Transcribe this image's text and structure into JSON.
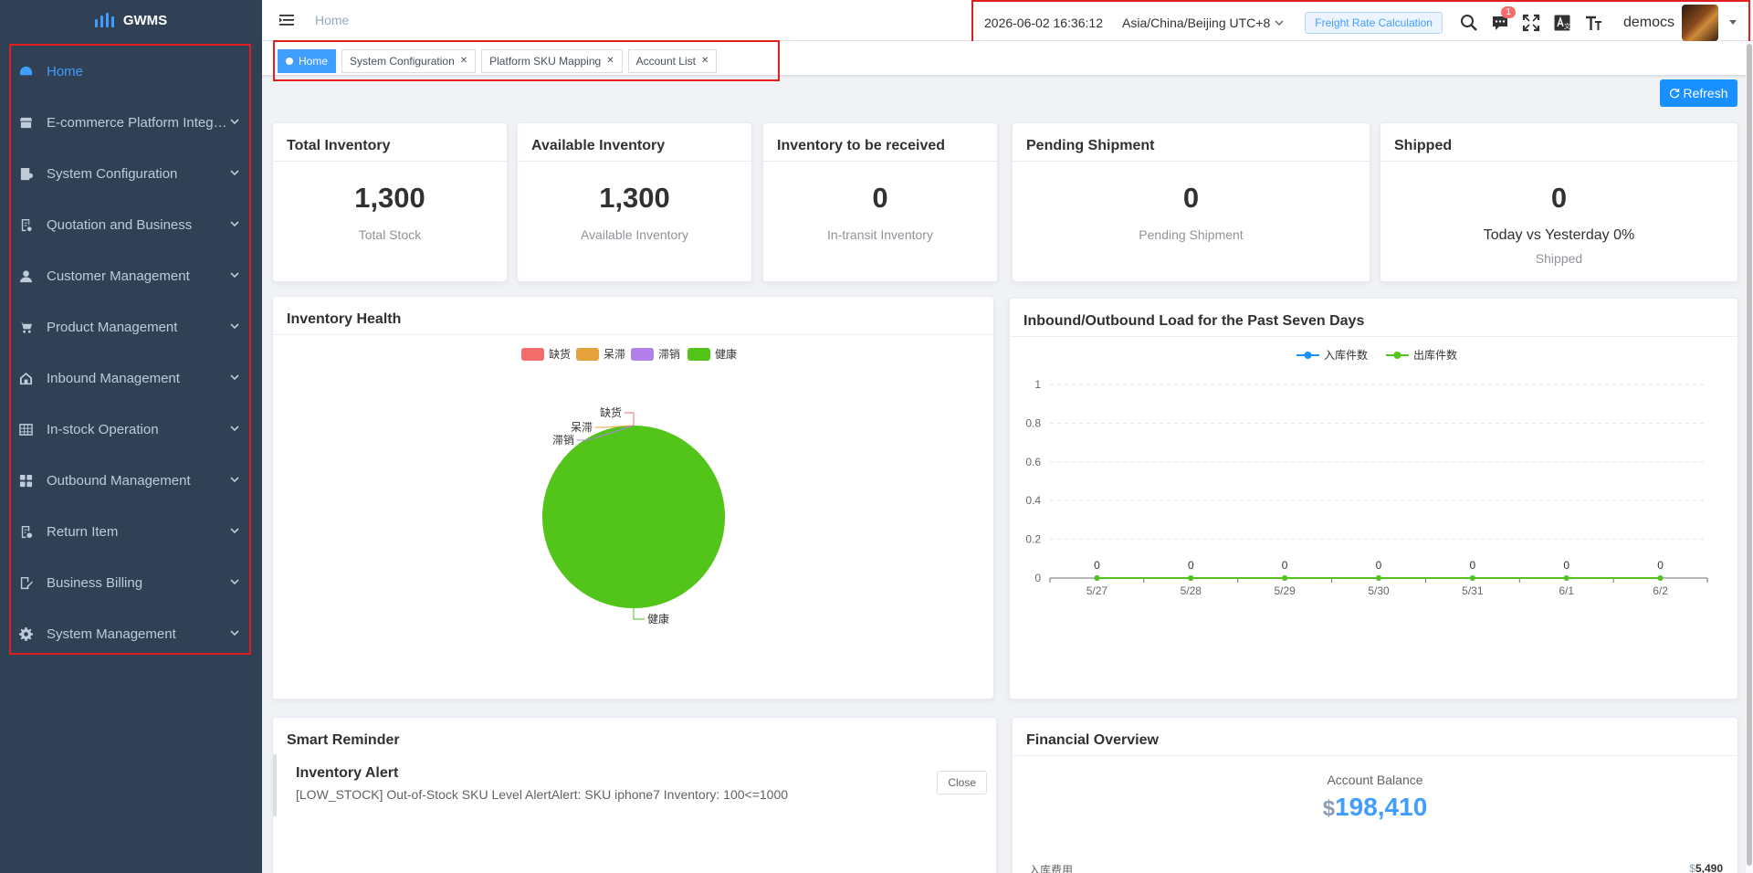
{
  "app": {
    "name": "GWMS"
  },
  "sidebar": {
    "items": [
      {
        "label": "Home",
        "icon": "dashboard-icon",
        "active": true
      },
      {
        "label": "E-commerce Platform Integr…",
        "icon": "shop-icon"
      },
      {
        "label": "System Configuration",
        "icon": "config-icon"
      },
      {
        "label": "Quotation and Business",
        "icon": "quotation-icon"
      },
      {
        "label": "Customer Management",
        "icon": "user-icon"
      },
      {
        "label": "Product Management",
        "icon": "cart-icon"
      },
      {
        "label": "Inbound Management",
        "icon": "home-icon"
      },
      {
        "label": "In-stock Operation",
        "icon": "table-icon"
      },
      {
        "label": "Outbound Management",
        "icon": "grid-icon"
      },
      {
        "label": "Return Item",
        "icon": "return-icon"
      },
      {
        "label": "Business Billing",
        "icon": "billing-icon"
      },
      {
        "label": "System Management",
        "icon": "gear-icon"
      }
    ]
  },
  "header": {
    "breadcrumb": "Home",
    "datetime": "2026-06-02 16:36:12",
    "timezone": "Asia/China/Beijing UTC+8",
    "freight_button": "Freight Rate Calculation",
    "message_badge": "1",
    "username": "democs"
  },
  "tags": [
    {
      "label": "Home",
      "active": true
    },
    {
      "label": "System Configuration"
    },
    {
      "label": "Platform SKU Mapping"
    },
    {
      "label": "Account List"
    }
  ],
  "refresh_label": "Refresh",
  "stats": {
    "total": {
      "title": "Total Inventory",
      "value": "1,300",
      "sub": "Total Stock"
    },
    "available": {
      "title": "Available Inventory",
      "value": "1,300",
      "sub": "Available Inventory"
    },
    "to_receive": {
      "title": "Inventory to be received",
      "value": "0",
      "sub": "In-transit Inventory"
    },
    "pending": {
      "title": "Pending Shipment",
      "value": "0",
      "sub": "Pending Shipment"
    },
    "shipped": {
      "title": "Shipped",
      "value": "0",
      "compare": "Today vs Yesterday 0%",
      "sub": "Shipped"
    }
  },
  "inventory_health": {
    "title": "Inventory Health"
  },
  "load_chart": {
    "title": "Inbound/Outbound Load for the Past Seven Days"
  },
  "chart_data": [
    {
      "type": "pie",
      "title": "Inventory Health",
      "categories": [
        "缺货",
        "呆滞",
        "滞销",
        "健康"
      ],
      "values": [
        0,
        0,
        0,
        1300
      ],
      "colors": [
        "#f56c6c",
        "#e6a23c",
        "#b37feb",
        "#52c41a"
      ],
      "legend": "top"
    },
    {
      "type": "line",
      "title": "Inbound/Outbound Load for the Past Seven Days",
      "x": [
        "5/27",
        "5/28",
        "5/29",
        "5/30",
        "5/31",
        "6/1",
        "6/2"
      ],
      "series": [
        {
          "name": "入库件数",
          "values": [
            0,
            0,
            0,
            0,
            0,
            0,
            0
          ],
          "color": "#1890ff"
        },
        {
          "name": "出库件数",
          "values": [
            0,
            0,
            0,
            0,
            0,
            0,
            0
          ],
          "color": "#52c41a"
        }
      ],
      "ylim": [
        0,
        1
      ],
      "yticks": [
        "0",
        "0.2",
        "0.4",
        "0.6",
        "0.8",
        "1"
      ],
      "legend": "top",
      "grid": true
    }
  ],
  "smart_reminder": {
    "title": "Smart Reminder",
    "alert_title": "Inventory Alert",
    "alert_text": "[LOW_STOCK] Out-of-Stock SKU Level AlertAlert: SKU iphone7 Inventory: 100<=1000",
    "close_label": "Close"
  },
  "financial": {
    "title": "Financial Overview",
    "balance_label": "Account Balance",
    "currency": "$",
    "balance": "198,410",
    "row_label": "入库费用",
    "row_currency": "$",
    "row_value": "5,490"
  }
}
